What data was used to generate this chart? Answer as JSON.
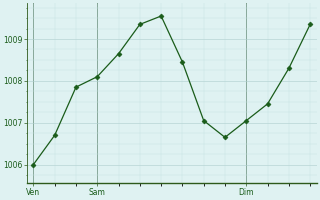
{
  "y": [
    1006.0,
    1006.7,
    1007.85,
    1008.1,
    1008.65,
    1009.35,
    1009.55,
    1008.45,
    1007.05,
    1006.65,
    1007.05,
    1007.45,
    1008.3,
    1009.35
  ],
  "xtick_labels": [
    "Ven",
    "Sam",
    "Dim"
  ],
  "xtick_positions": [
    0,
    3,
    10
  ],
  "vline_positions": [
    0,
    3,
    10
  ],
  "yticks": [
    1006,
    1007,
    1008,
    1009
  ],
  "ylim": [
    1005.55,
    1009.85
  ],
  "xlim": [
    -0.3,
    13.3
  ],
  "line_color": "#1a5c1a",
  "marker_color": "#1a5c1a",
  "bg_color": "#dff2f2",
  "grid_color_major": "#aecece",
  "grid_color_minor": "#c5e3e3",
  "axis_color": "#2d5a1b",
  "tick_label_color": "#1a5c1a",
  "figwidth": 3.2,
  "figheight": 2.0,
  "dpi": 100
}
